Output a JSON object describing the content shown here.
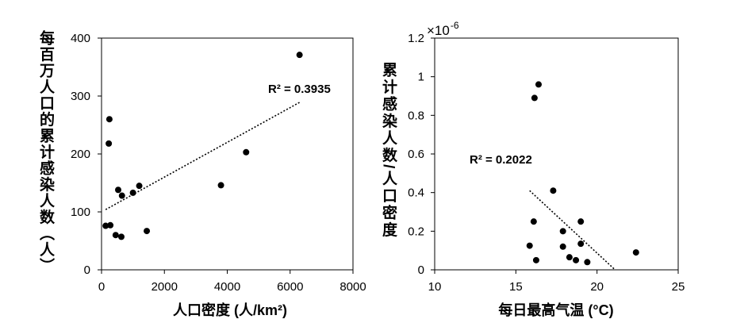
{
  "chart_data": [
    {
      "type": "scatter",
      "xlabel": "人口密度 (人/km²)",
      "ylabel": "每百万人口的累计感染人数（人）",
      "xlim": [
        0,
        8000
      ],
      "ylim": [
        0,
        400
      ],
      "xticks": [
        0,
        2000,
        4000,
        6000,
        8000
      ],
      "yticks": [
        0,
        100,
        200,
        300,
        400
      ],
      "grid": false,
      "legend": "none",
      "frame": true,
      "points": [
        {
          "x": 6300,
          "y": 371
        },
        {
          "x": 4600,
          "y": 203
        },
        {
          "x": 3800,
          "y": 146
        },
        {
          "x": 1200,
          "y": 145
        },
        {
          "x": 1000,
          "y": 133
        },
        {
          "x": 530,
          "y": 138
        },
        {
          "x": 650,
          "y": 128
        },
        {
          "x": 250,
          "y": 260
        },
        {
          "x": 230,
          "y": 218
        },
        {
          "x": 130,
          "y": 76
        },
        {
          "x": 280,
          "y": 77
        },
        {
          "x": 450,
          "y": 60
        },
        {
          "x": 630,
          "y": 57
        },
        {
          "x": 1440,
          "y": 67
        }
      ],
      "trendline": {
        "type": "linear",
        "style": "dotted",
        "x": [
          130,
          6300
        ],
        "y": [
          104,
          289
        ]
      },
      "annotation": "R² = 0.3935",
      "colors": {
        "points": "#000000",
        "trendline": "#000000",
        "axes": "#000000"
      }
    },
    {
      "type": "scatter",
      "xlabel": "每日最高气温 (°C)",
      "ylabel": "累计感染人数/人口密度",
      "xlim": [
        10,
        25
      ],
      "ylim": [
        0,
        1.2
      ],
      "xticks": [
        10,
        15,
        20,
        25
      ],
      "yticks": [
        0,
        0.2,
        0.4,
        0.6,
        0.8,
        1,
        1.2
      ],
      "y_multiplier": {
        "base": "×10",
        "exponent": "-6"
      },
      "grid": false,
      "legend": "none",
      "frame": true,
      "points": [
        {
          "x": 16.4,
          "y": 0.96
        },
        {
          "x": 16.15,
          "y": 0.89
        },
        {
          "x": 17.3,
          "y": 0.41
        },
        {
          "x": 16.1,
          "y": 0.25
        },
        {
          "x": 19.0,
          "y": 0.25
        },
        {
          "x": 17.9,
          "y": 0.2
        },
        {
          "x": 15.85,
          "y": 0.125
        },
        {
          "x": 17.9,
          "y": 0.12
        },
        {
          "x": 19.0,
          "y": 0.135
        },
        {
          "x": 16.25,
          "y": 0.05
        },
        {
          "x": 18.3,
          "y": 0.065
        },
        {
          "x": 18.7,
          "y": 0.05
        },
        {
          "x": 19.4,
          "y": 0.04
        },
        {
          "x": 22.4,
          "y": 0.09
        }
      ],
      "trendline": {
        "type": "linear",
        "style": "dotted",
        "x": [
          15.85,
          21.05
        ],
        "y": [
          0.41,
          0.005
        ]
      },
      "annotation": "R² = 0.2022",
      "colors": {
        "points": "#000000",
        "trendline": "#000000",
        "axes": "#000000"
      }
    }
  ]
}
